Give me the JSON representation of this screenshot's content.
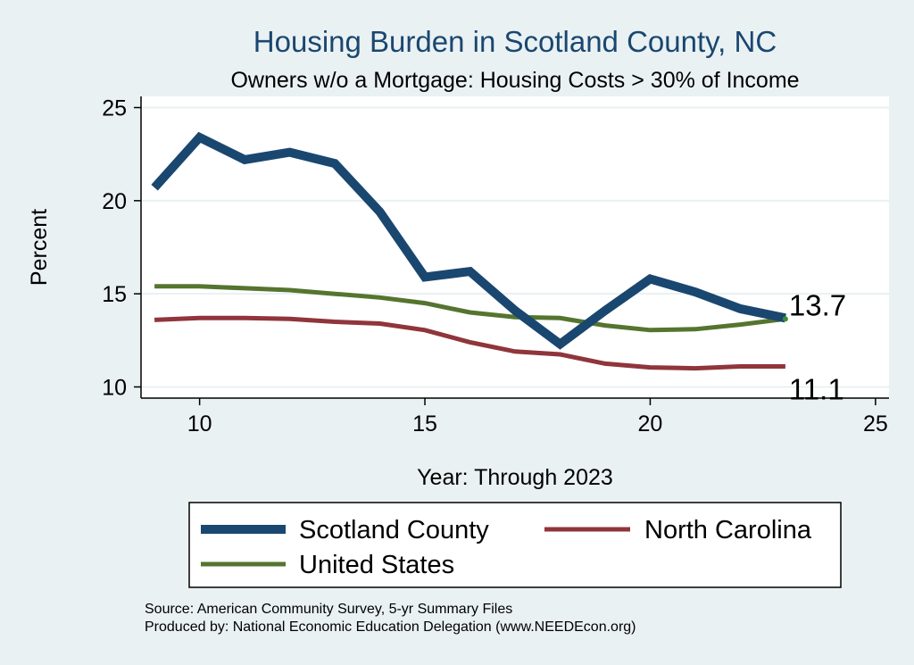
{
  "chart_data": {
    "type": "line",
    "title": "Housing Burden in Scotland County, NC",
    "subtitle": "Owners w/o a Mortgage: Housing Costs > 30% of Income",
    "xlabel": "Year: Through 2023",
    "ylabel": "Percent",
    "xlim": [
      8.7,
      25.3
    ],
    "ylim": [
      9.4,
      25.6
    ],
    "xticks": [
      10,
      15,
      20,
      25
    ],
    "yticks": [
      10,
      15,
      20,
      25
    ],
    "x": [
      9,
      10,
      11,
      12,
      13,
      14,
      15,
      16,
      17,
      18,
      19,
      20,
      21,
      22,
      23
    ],
    "series": [
      {
        "name": "Scotland County",
        "color": "#1a476f",
        "values": [
          20.7,
          23.4,
          22.2,
          22.6,
          22.0,
          19.4,
          15.9,
          16.2,
          14.1,
          12.3,
          14.1,
          15.8,
          15.1,
          14.2,
          13.7
        ]
      },
      {
        "name": "North Carolina",
        "color": "#90353b",
        "values": [
          13.6,
          13.7,
          13.7,
          13.65,
          13.5,
          13.4,
          13.05,
          12.4,
          11.9,
          11.75,
          11.25,
          11.05,
          11.0,
          11.1,
          11.1
        ]
      },
      {
        "name": "United States",
        "color": "#55752f",
        "values": [
          15.4,
          15.4,
          15.3,
          15.2,
          15.0,
          14.8,
          14.5,
          14.0,
          13.75,
          13.7,
          13.3,
          13.05,
          13.1,
          13.35,
          13.65
        ]
      }
    ],
    "annotations": [
      {
        "text": "13.7",
        "x": 23,
        "y": 13.7
      },
      {
        "text": "11.1",
        "x": 23,
        "y": 11.1
      }
    ],
    "grid": true,
    "legend": "bottom"
  },
  "footer": {
    "source": "Source: American Community Survey, 5-yr Summary Files",
    "produced": "Produced by: National Economic Education Delegation (www.NEEDEcon.org)"
  }
}
